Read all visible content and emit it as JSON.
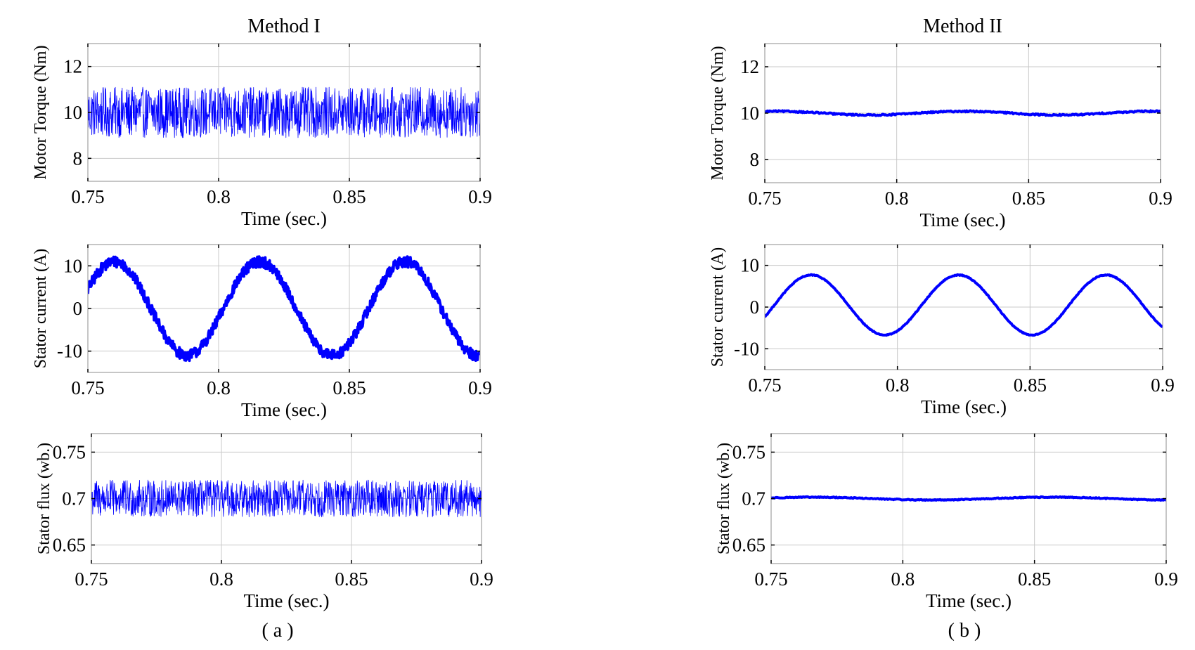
{
  "figure": {
    "caption_a": "( a )",
    "caption_b": "( b )",
    "line_color": "#0000ff"
  },
  "chart_data": [
    {
      "type": "line",
      "column": "a",
      "row": 0,
      "title": "Method  I",
      "xlabel": "Time (sec.)",
      "ylabel": "Motor Torque (Nm)",
      "xlim": [
        0.75,
        0.9
      ],
      "ylim": [
        7,
        13
      ],
      "xticks": [
        0.75,
        0.8,
        0.85,
        0.9
      ],
      "xtick_labels": [
        "0.75",
        "0.8",
        "0.85",
        "0.9"
      ],
      "yticks": [
        8,
        10,
        12
      ],
      "ytick_labels": [
        "8",
        "10",
        "12"
      ],
      "signal": {
        "mean": 10,
        "sine_amplitude": 0,
        "frequency_hz": 0,
        "phase_rad": 0,
        "noise_amplitude": 1.1,
        "samples": 1200,
        "line": "thin"
      }
    },
    {
      "type": "line",
      "column": "a",
      "row": 1,
      "title": "",
      "xlabel": "Time (sec.)",
      "ylabel": "Stator current (A)",
      "xlim": [
        0.75,
        0.9
      ],
      "ylim": [
        -15,
        15
      ],
      "xticks": [
        0.75,
        0.8,
        0.85,
        0.9
      ],
      "xtick_labels": [
        "0.75",
        "0.8",
        "0.85",
        "0.9"
      ],
      "yticks": [
        -10,
        0,
        10
      ],
      "ytick_labels": [
        "-10",
        "0",
        "10"
      ],
      "signal": {
        "mean": 0,
        "sine_amplitude": 11,
        "frequency_hz": 18,
        "phase_rad": 0.42,
        "noise_amplitude": 1.3,
        "samples": 900,
        "line": "thick"
      }
    },
    {
      "type": "line",
      "column": "a",
      "row": 2,
      "title": "",
      "xlabel": "Time (sec.)",
      "ylabel": "Stator flux (wb.)",
      "xlim": [
        0.75,
        0.9
      ],
      "ylim": [
        0.63,
        0.77
      ],
      "xticks": [
        0.75,
        0.8,
        0.85,
        0.9
      ],
      "xtick_labels": [
        "0.75",
        "0.8",
        "0.85",
        "0.9"
      ],
      "yticks": [
        0.65,
        0.7,
        0.75
      ],
      "ytick_labels": [
        "0.65",
        "0.7",
        "0.75"
      ],
      "signal": {
        "mean": 0.7,
        "sine_amplitude": 0,
        "frequency_hz": 0,
        "phase_rad": 0,
        "noise_amplitude": 0.02,
        "samples": 1200,
        "line": "thin"
      }
    },
    {
      "type": "line",
      "column": "b",
      "row": 0,
      "title": "Method  II",
      "xlabel": "Time (sec.)",
      "ylabel": "Motor Torque (Nm)",
      "xlim": [
        0.75,
        0.9
      ],
      "ylim": [
        7,
        13
      ],
      "xticks": [
        0.75,
        0.8,
        0.85,
        0.9
      ],
      "xtick_labels": [
        "0.75",
        "0.8",
        "0.85",
        "0.9"
      ],
      "yticks": [
        8,
        10,
        12
      ],
      "ytick_labels": [
        "8",
        "10",
        "12"
      ],
      "signal": {
        "mean": 10,
        "sine_amplitude": 0.08,
        "frequency_hz": 14,
        "phase_rad": 1.2,
        "noise_amplitude": 0.03,
        "samples": 400,
        "line": "thick"
      }
    },
    {
      "type": "line",
      "column": "b",
      "row": 1,
      "title": "",
      "xlabel": "Time (sec.)",
      "ylabel": "Stator current (A)",
      "xlim": [
        0.75,
        0.9
      ],
      "ylim": [
        -15,
        15
      ],
      "xticks": [
        0.75,
        0.8,
        0.85,
        0.9
      ],
      "xtick_labels": [
        "0.75",
        "0.8",
        "0.85",
        "0.9"
      ],
      "yticks": [
        -10,
        0,
        10
      ],
      "ytick_labels": [
        "-10",
        "0",
        "10"
      ],
      "signal": {
        "mean": 0.5,
        "sine_amplitude": 7.2,
        "frequency_hz": 18,
        "phase_rad": -0.41,
        "noise_amplitude": 0.1,
        "samples": 500,
        "line": "thick"
      }
    },
    {
      "type": "line",
      "column": "b",
      "row": 2,
      "title": "",
      "xlabel": "Time (sec.)",
      "ylabel": "Stator flux (wb.)",
      "xlim": [
        0.75,
        0.9
      ],
      "ylim": [
        0.63,
        0.77
      ],
      "xticks": [
        0.75,
        0.8,
        0.85,
        0.9
      ],
      "xtick_labels": [
        "0.75",
        "0.8",
        "0.85",
        "0.9"
      ],
      "yticks": [
        0.65,
        0.7,
        0.75
      ],
      "ytick_labels": [
        "0.65",
        "0.7",
        "0.75"
      ],
      "signal": {
        "mean": 0.7,
        "sine_amplitude": 0.0015,
        "frequency_hz": 11,
        "phase_rad": 0.5,
        "noise_amplitude": 0.0005,
        "samples": 400,
        "line": "thick"
      }
    }
  ]
}
